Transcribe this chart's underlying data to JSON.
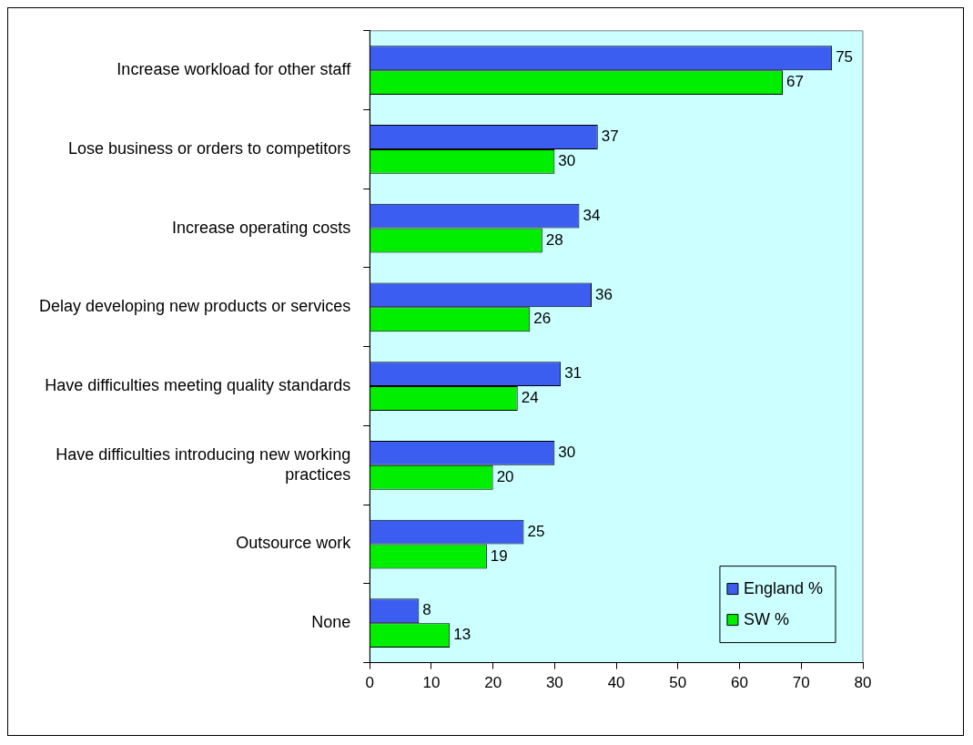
{
  "chart_data": {
    "type": "bar",
    "orientation": "horizontal",
    "categories": [
      "Increase workload for other staff",
      "Lose business or orders to competitors",
      "Increase operating costs",
      "Delay developing new products or services",
      "Have difficulties meeting quality standards",
      "Have difficulties introducing new working practices",
      "Outsource work",
      "None"
    ],
    "series": [
      {
        "name": "England %",
        "color": "#3b5ef0",
        "values": [
          75,
          37,
          34,
          36,
          31,
          30,
          25,
          8
        ]
      },
      {
        "name": "SW %",
        "color": "#00ee00",
        "values": [
          67,
          30,
          28,
          26,
          24,
          20,
          19,
          13
        ]
      }
    ],
    "xlim": [
      0,
      80
    ],
    "xticks": [
      0,
      10,
      20,
      30,
      40,
      50,
      60,
      70,
      80
    ],
    "grid": false,
    "legend": "bottom right",
    "data_labels": true
  }
}
